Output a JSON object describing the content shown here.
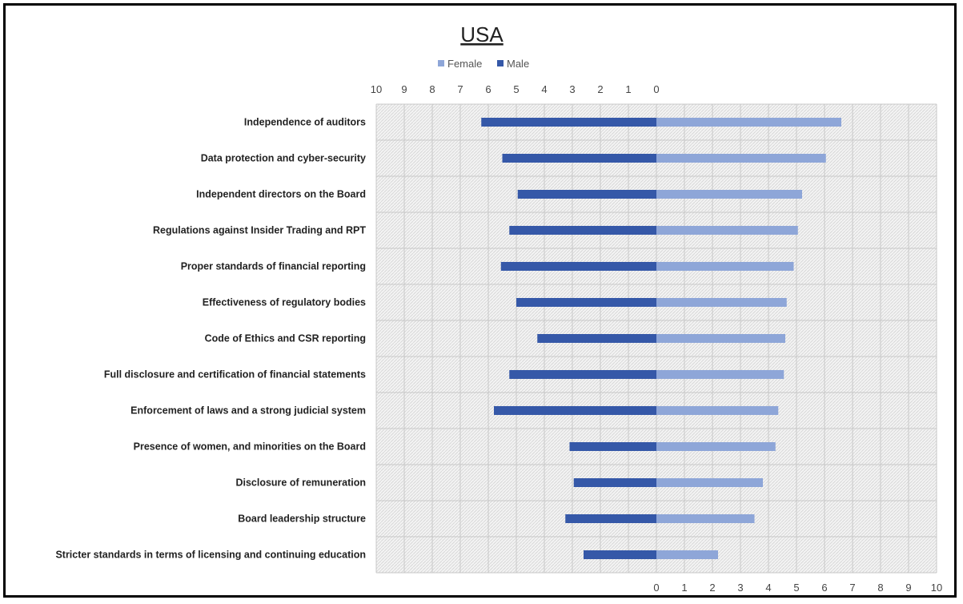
{
  "chart_data": {
    "type": "bar",
    "title": "USA",
    "legend": {
      "position": "top",
      "entries": [
        "Female",
        "Male"
      ]
    },
    "grid": true,
    "left_axis": {
      "range": [
        10,
        0
      ],
      "ticks": [
        "10",
        "9",
        "8",
        "7",
        "6",
        "5",
        "4",
        "3",
        "2",
        "1",
        "0"
      ]
    },
    "right_axis": {
      "range": [
        0,
        10
      ],
      "ticks": [
        "0",
        "1",
        "2",
        "3",
        "4",
        "5",
        "6",
        "7",
        "8",
        "9",
        "10"
      ]
    },
    "categories": [
      "Independence of auditors",
      "Data protection and cyber-security",
      "Independent directors on the Board",
      "Regulations against Insider Trading and RPT",
      "Proper standards of financial reporting",
      "Effectiveness of regulatory bodies",
      "Code of Ethics and CSR reporting",
      "Full disclosure and certification of financial statements",
      "Enforcement of laws and a strong judicial system",
      "Presence of women, and minorities on the Board",
      "Disclosure of remuneration",
      "Board leadership structure",
      "Stricter standards in terms of licensing and continuing education"
    ],
    "series": [
      {
        "name": "Female",
        "color": "#8EA6D8",
        "values": [
          6.6,
          6.05,
          5.2,
          5.05,
          4.9,
          4.65,
          4.6,
          4.55,
          4.35,
          4.25,
          3.8,
          3.5,
          2.2
        ]
      },
      {
        "name": "Male",
        "color": "#3558A8",
        "values": [
          6.25,
          5.5,
          4.95,
          5.25,
          5.55,
          5.0,
          4.25,
          5.25,
          5.8,
          3.1,
          2.95,
          3.25,
          2.6
        ]
      }
    ]
  }
}
